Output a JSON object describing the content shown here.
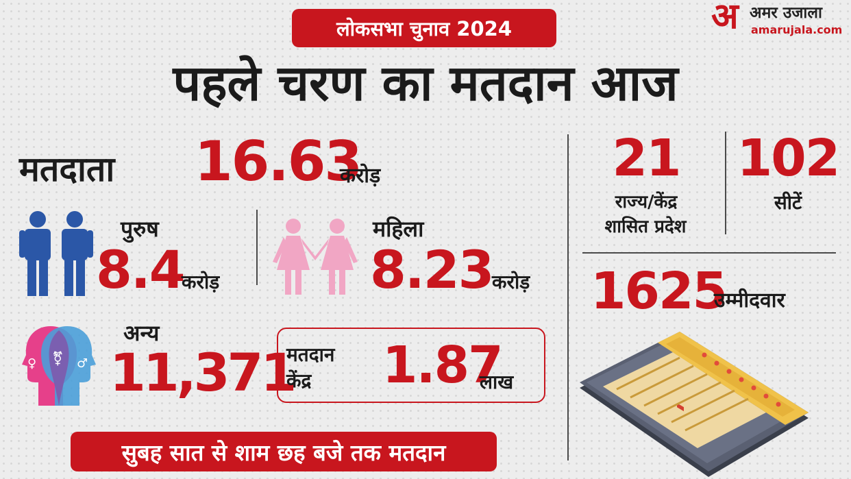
{
  "badge": "लोकसभा चुनाव 2024",
  "headline": "पहले चरण का मतदान आज",
  "logo": {
    "mark": "अ",
    "name": "अमर उजाला",
    "site": "amarujala.com"
  },
  "voters": {
    "label": "मतदाता",
    "value": "16.63",
    "unit": "करोड़"
  },
  "male": {
    "label": "पुरुष",
    "value": "8.4",
    "unit": "करोड़",
    "icon": "male-figures-icon"
  },
  "female": {
    "label": "महिला",
    "value": "8.23",
    "unit": "करोड़",
    "icon": "female-figures-icon"
  },
  "others": {
    "label": "अन्य",
    "value": "11,371",
    "icon": "gender-faces-icon"
  },
  "polling_centres": {
    "label_line1": "मतदान",
    "label_line2": "केंद्र",
    "value": "1.87",
    "unit": "लाख"
  },
  "states": {
    "value": "21",
    "label_line1": "राज्य/केंद्र",
    "label_line2": "शासित प्रदेश"
  },
  "seats": {
    "value": "102",
    "label": "सीटें"
  },
  "candidates": {
    "value": "1625",
    "label": "उम्मीदवार",
    "icon": "evm-machine-icon"
  },
  "timing": "सुबह सात से शाम छह बजे तक मतदान",
  "colors": {
    "accent": "#c8161e",
    "male": "#2b57a7",
    "female": "#f1a6c4"
  }
}
